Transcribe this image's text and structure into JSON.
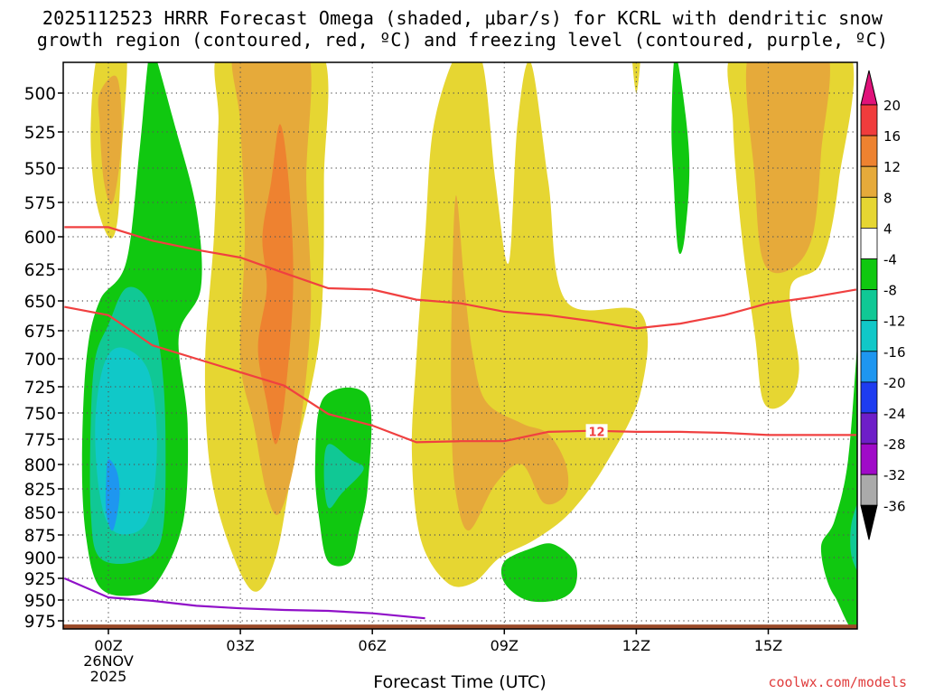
{
  "chart_data": {
    "type": "time-height cross section (filled contours)",
    "title_line1": "2025112523 HRRR Forecast Omega (shaded, μbar/s) for KCRL with dendritic snow",
    "title_line2": "growth region (contoured, red, ºC) and freezing level (contoured, purple, ºC)",
    "xlabel": "Forecast Time (UTC)",
    "ylabel": "",
    "x_range_hours": [
      -1,
      17
    ],
    "y_range_hpa": [
      475,
      985
    ],
    "y_ticks": [
      "500",
      "525",
      "550",
      "575",
      "600",
      "625",
      "650",
      "675",
      "700",
      "725",
      "750",
      "775",
      "800",
      "825",
      "850",
      "875",
      "900",
      "925",
      "950",
      "975"
    ],
    "x_ticks": [
      {
        "hour": 0,
        "label": "00Z",
        "sub1": "26NOV",
        "sub2": "2025"
      },
      {
        "hour": 3,
        "label": "03Z"
      },
      {
        "hour": 6,
        "label": "06Z"
      },
      {
        "hour": 9,
        "label": "09Z"
      },
      {
        "hour": 12,
        "label": "12Z"
      },
      {
        "hour": 15,
        "label": "15Z"
      }
    ],
    "colorbar": {
      "labels": [
        "20",
        "16",
        "12",
        "8",
        "4",
        "-4",
        "-8",
        "-12",
        "-16",
        "-20",
        "-24",
        "-28",
        "-32",
        "-36"
      ],
      "bands": [
        "#e0127a",
        "#f03c3c",
        "#ee8230",
        "#e6aa3a",
        "#e6d632",
        "#ffffff",
        "#10c810",
        "#10c895",
        "#10c8c8",
        "#1e96f0",
        "#1e3cf0",
        "#6e1ec8",
        "#a00ac8",
        "#aaaaaa",
        "#000000"
      ]
    },
    "shading": {
      "4_to_8": "#e6d632",
      "8_to_12": "#e6aa3a",
      "12_to_16": "#ee8230",
      "-4_to_-8": "#10c810",
      "-8_to_-12": "#10c895",
      "-12_to_-16": "#10c8c8",
      "-16_to_-20": "#1e96f0"
    },
    "dgz_top_isotherm": [
      [
        -1,
        593
      ],
      [
        0,
        593
      ],
      [
        1,
        603
      ],
      [
        2,
        610
      ],
      [
        3,
        616
      ],
      [
        4,
        628
      ],
      [
        5,
        640
      ],
      [
        6,
        641
      ],
      [
        7,
        649
      ],
      [
        8,
        652
      ],
      [
        9,
        659
      ],
      [
        10,
        662
      ],
      [
        11,
        667
      ],
      [
        12,
        673
      ],
      [
        13,
        669
      ],
      [
        14,
        662
      ],
      [
        15,
        652
      ],
      [
        16,
        647
      ],
      [
        17,
        641
      ]
    ],
    "dgz_bottom_isotherm": [
      [
        -1,
        655
      ],
      [
        0,
        662
      ],
      [
        1,
        688
      ],
      [
        2,
        700
      ],
      [
        3,
        712
      ],
      [
        4,
        724
      ],
      [
        5,
        751
      ],
      [
        6,
        762
      ],
      [
        7,
        778
      ],
      [
        8,
        777
      ],
      [
        9,
        777
      ],
      [
        10,
        768
      ],
      [
        11,
        767
      ],
      [
        12,
        768
      ],
      [
        13,
        768
      ],
      [
        14,
        769
      ],
      [
        15,
        771
      ],
      [
        16,
        771
      ],
      [
        17,
        771
      ]
    ],
    "contour_label": "12",
    "freezing_level": [
      [
        -1,
        925
      ],
      [
        0,
        947
      ],
      [
        1,
        951
      ],
      [
        2,
        957
      ],
      [
        3,
        960
      ],
      [
        4,
        962
      ],
      [
        5,
        963
      ],
      [
        6,
        966
      ],
      [
        7,
        971
      ],
      [
        7.2,
        972
      ]
    ],
    "terrain_top_hpa": 973,
    "colors": {
      "dgz": "#f04040",
      "freezing": "#9010c8",
      "terrain": "#9b4a28"
    }
  },
  "credit": "coolwx.com/models"
}
